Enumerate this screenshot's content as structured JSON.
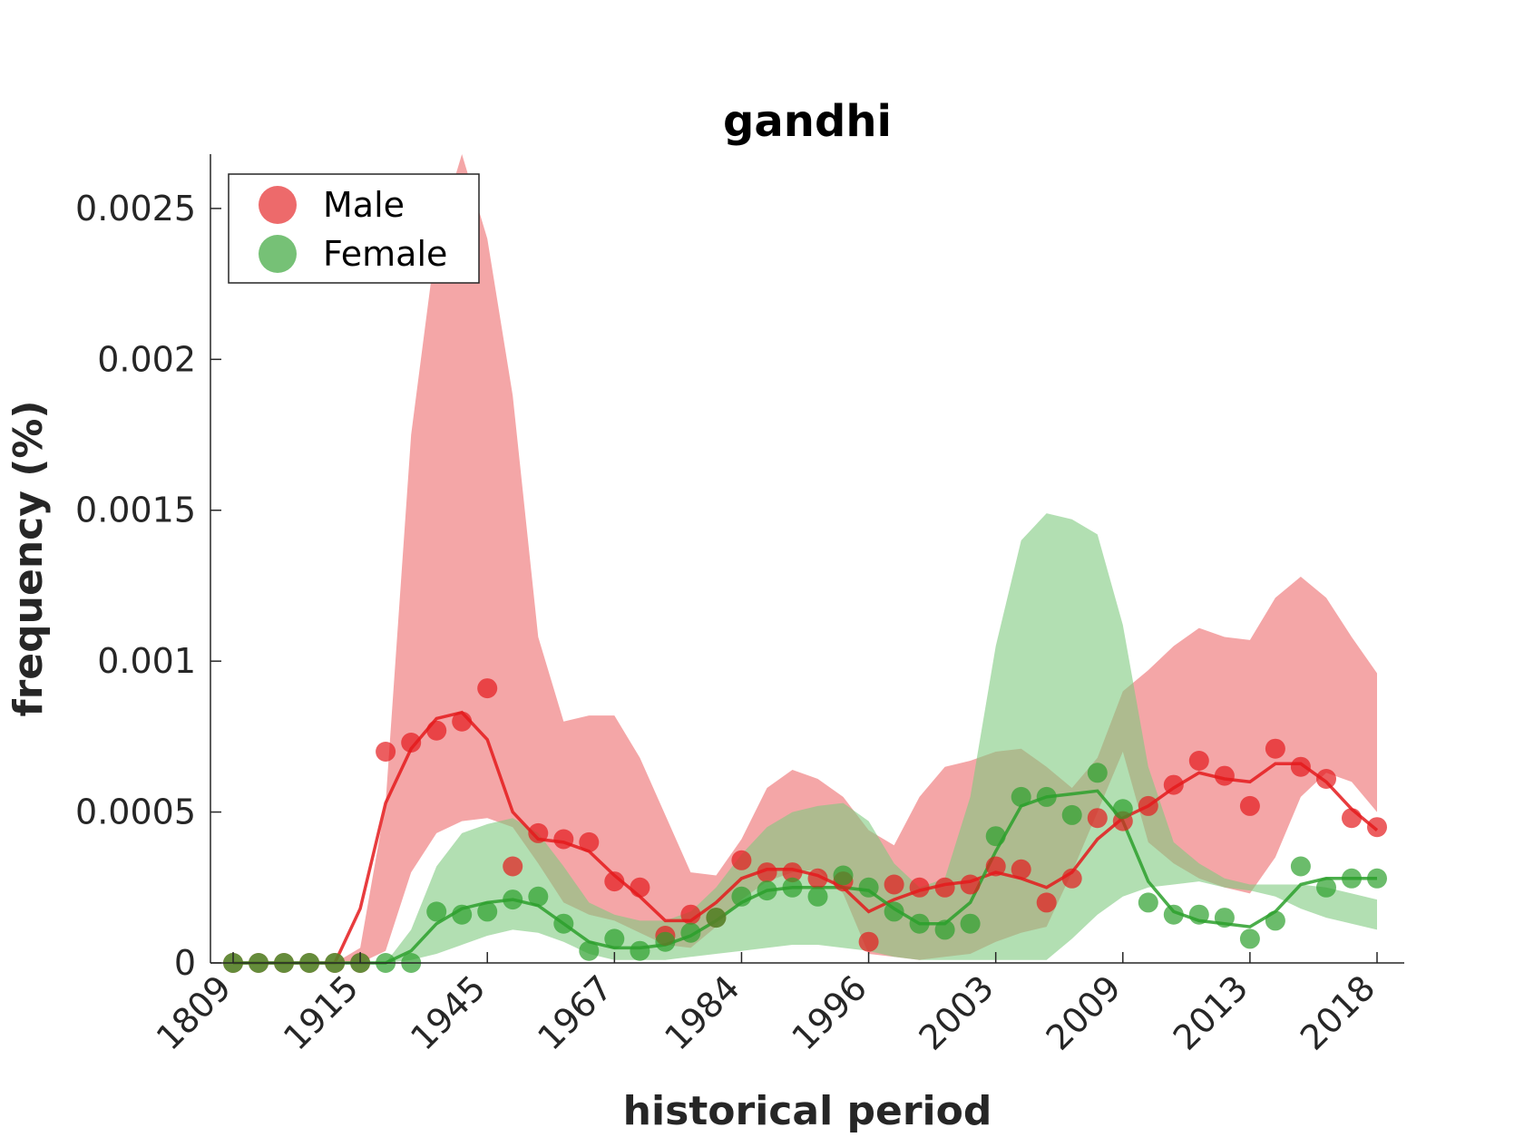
{
  "chart_data": {
    "type": "area",
    "title": "gandhi",
    "xlabel": "historical period",
    "ylabel": "frequency (%)",
    "ylim": [
      0,
      0.00268
    ],
    "yticks": [
      0,
      0.0005,
      0.001,
      0.0015,
      0.002,
      0.0025
    ],
    "ytick_labels": [
      "0",
      "0.0005",
      "0.001",
      "0.0015",
      "0.002",
      "0.0025"
    ],
    "xtick_labels": [
      "1809",
      "1915",
      "1945",
      "1967",
      "1984",
      "1996",
      "2003",
      "2009",
      "2013",
      "2018"
    ],
    "xtick_indices": [
      0,
      5,
      10,
      15,
      20,
      25,
      30,
      35,
      40,
      45
    ],
    "n_points": 46,
    "legend": {
      "placement": "top-left",
      "entries": [
        "Male",
        "Female"
      ]
    },
    "grid": false,
    "series": [
      {
        "name": "Male",
        "color": "#e41a1c",
        "band_color": "#ec6a6c",
        "points": [
          0,
          0,
          0,
          0,
          0,
          0,
          0.0007,
          0.00073,
          0.00077,
          0.0008,
          0.00091,
          0.00032,
          0.00043,
          0.00041,
          0.0004,
          0.00027,
          0.00025,
          9e-05,
          0.00016,
          0.00015,
          0.00034,
          0.0003,
          0.0003,
          0.00028,
          0.00027,
          7e-05,
          0.00026,
          0.00025,
          0.00025,
          0.00026,
          0.00032,
          0.00031,
          0.0002,
          0.00028,
          0.00048,
          0.00047,
          0.00052,
          0.00059,
          0.00067,
          0.00062,
          0.00052,
          0.00071,
          0.00065,
          0.00061,
          0.00048,
          0.00045
        ],
        "smoothed": [
          0,
          0,
          0,
          0,
          0,
          0.00018,
          0.00053,
          0.00071,
          0.00081,
          0.00083,
          0.00074,
          0.0005,
          0.00041,
          0.0004,
          0.00037,
          0.00029,
          0.00022,
          0.00014,
          0.00014,
          0.0002,
          0.00028,
          0.00031,
          0.00031,
          0.00029,
          0.00025,
          0.00017,
          0.00021,
          0.00024,
          0.00026,
          0.00027,
          0.0003,
          0.00028,
          0.00025,
          0.0003,
          0.00041,
          0.00048,
          0.00052,
          0.00058,
          0.00063,
          0.00061,
          0.0006,
          0.00066,
          0.00066,
          0.0006,
          0.00051,
          0.00044
        ],
        "band_upper": [
          0,
          0,
          0,
          0,
          0,
          5e-05,
          0.00053,
          0.00175,
          0.0024,
          0.00268,
          0.0024,
          0.00188,
          0.00108,
          0.0008,
          0.00082,
          0.00082,
          0.00068,
          0.00049,
          0.0003,
          0.00029,
          0.00041,
          0.00058,
          0.00064,
          0.00061,
          0.00055,
          0.00044,
          0.00039,
          0.00055,
          0.00065,
          0.00067,
          0.0007,
          0.00071,
          0.00065,
          0.00058,
          0.00068,
          0.0009,
          0.00097,
          0.00105,
          0.00111,
          0.00108,
          0.00107,
          0.00121,
          0.00128,
          0.00121,
          0.00108,
          0.00096
        ],
        "band_lower": [
          0,
          0,
          0,
          0,
          0,
          0,
          4e-05,
          0.0003,
          0.00043,
          0.00047,
          0.00048,
          0.00045,
          0.00033,
          0.0002,
          0.00016,
          0.00014,
          0.0001,
          6e-05,
          5e-05,
          0.00012,
          0.00021,
          0.00027,
          0.0003,
          0.00031,
          0.00023,
          3e-05,
          2e-05,
          1e-05,
          2e-05,
          3e-05,
          7e-05,
          0.0001,
          0.00012,
          0.0003,
          0.0005,
          0.0007,
          0.0004,
          0.00033,
          0.00028,
          0.00025,
          0.00023,
          0.00035,
          0.00055,
          0.00063,
          0.0006,
          0.0005
        ]
      },
      {
        "name": "Female",
        "color": "#2ca02c",
        "band_color": "#7fc97f",
        "points": [
          0,
          0,
          0,
          0,
          0,
          0,
          0,
          0,
          0.00017,
          0.00016,
          0.00017,
          0.00021,
          0.00022,
          0.00013,
          4e-05,
          8e-05,
          4e-05,
          7e-05,
          0.0001,
          0.00015,
          0.00022,
          0.00024,
          0.00025,
          0.00022,
          0.00029,
          0.00025,
          0.00017,
          0.00013,
          0.00011,
          0.00013,
          0.00042,
          0.00055,
          0.00055,
          0.00049,
          0.00063,
          0.00051,
          0.0002,
          0.00016,
          0.00016,
          0.00015,
          8e-05,
          0.00014,
          0.00032,
          0.00025,
          0.00028,
          0.00028
        ],
        "smoothed": [
          0,
          0,
          0,
          0,
          0,
          0,
          0,
          4e-05,
          0.00013,
          0.00018,
          0.0002,
          0.00021,
          0.00019,
          0.00013,
          7e-05,
          5e-05,
          5e-05,
          6e-05,
          9e-05,
          0.00014,
          0.0002,
          0.00024,
          0.00025,
          0.00025,
          0.00025,
          0.00024,
          0.00018,
          0.00013,
          0.00013,
          0.0002,
          0.00037,
          0.00052,
          0.00055,
          0.00056,
          0.00057,
          0.00047,
          0.00027,
          0.00017,
          0.00014,
          0.00013,
          0.00012,
          0.00017,
          0.00026,
          0.00028,
          0.00028,
          0.00028
        ],
        "band_upper": [
          0,
          0,
          0,
          0,
          0,
          0,
          0,
          0.00011,
          0.00032,
          0.00043,
          0.00046,
          0.00048,
          0.00043,
          0.00032,
          0.0002,
          0.00016,
          0.00014,
          0.00014,
          0.00017,
          0.00025,
          0.00036,
          0.00045,
          0.0005,
          0.00052,
          0.00053,
          0.00047,
          0.00033,
          0.00025,
          0.00028,
          0.00055,
          0.00105,
          0.0014,
          0.00149,
          0.00147,
          0.00142,
          0.00112,
          0.00065,
          0.0004,
          0.00033,
          0.00028,
          0.00026,
          0.00026,
          0.00026,
          0.00025,
          0.00023,
          0.00021
        ],
        "band_lower": [
          0,
          0,
          0,
          0,
          0,
          0,
          0,
          1e-05,
          3e-05,
          6e-05,
          9e-05,
          0.00011,
          0.0001,
          7e-05,
          3e-05,
          1e-05,
          1e-05,
          1e-05,
          2e-05,
          3e-05,
          4e-05,
          5e-05,
          6e-05,
          6e-05,
          5e-05,
          4e-05,
          2e-05,
          1e-05,
          1e-05,
          1e-05,
          1e-05,
          1e-05,
          1e-05,
          8e-05,
          0.00016,
          0.00022,
          0.00025,
          0.00026,
          0.00027,
          0.00025,
          0.00024,
          0.00022,
          0.00018,
          0.00015,
          0.00013,
          0.00011
        ]
      }
    ]
  }
}
